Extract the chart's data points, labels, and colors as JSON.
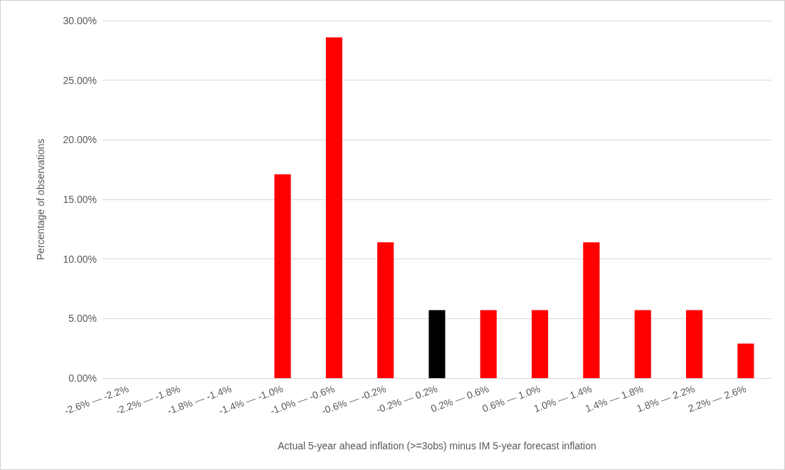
{
  "chart_data": {
    "type": "bar",
    "xlabel": "Actual 5-year ahead inflation (>=3obs) minus IM 5-year forecast inflation",
    "ylabel": "Percentage of observations",
    "categories": [
      "-2.6% — -2.2%",
      "-2.2% — -1.8%",
      "-1.8% — -1.4%",
      "-1.4% — -1.0%",
      "-1.0% — -0.6%",
      "-0.6% — -0.2%",
      "-0.2% — 0.2%",
      "0.2% — 0.6%",
      "0.6% — 1.0%",
      "1.0% — 1.4%",
      "1.4% — 1.8%",
      "1.8% — 2.2%",
      "2.2% — 2.6%"
    ],
    "values": [
      0,
      0,
      0,
      17.1,
      28.6,
      11.4,
      5.7,
      5.7,
      5.7,
      11.4,
      5.7,
      5.7,
      2.9
    ],
    "colors": [
      "#ff0000",
      "#ff0000",
      "#ff0000",
      "#ff0000",
      "#ff0000",
      "#ff0000",
      "#000000",
      "#ff0000",
      "#ff0000",
      "#ff0000",
      "#ff0000",
      "#ff0000",
      "#ff0000"
    ],
    "ylim": [
      0,
      30
    ],
    "yticks": [
      {
        "value": 0,
        "label": "0.00%"
      },
      {
        "value": 5,
        "label": "5.00%"
      },
      {
        "value": 10,
        "label": "10.00%"
      },
      {
        "value": 15,
        "label": "15.00%"
      },
      {
        "value": 20,
        "label": "20.00%"
      },
      {
        "value": 25,
        "label": "25.00%"
      },
      {
        "value": 30,
        "label": "30.00%"
      }
    ],
    "grid": "y"
  }
}
